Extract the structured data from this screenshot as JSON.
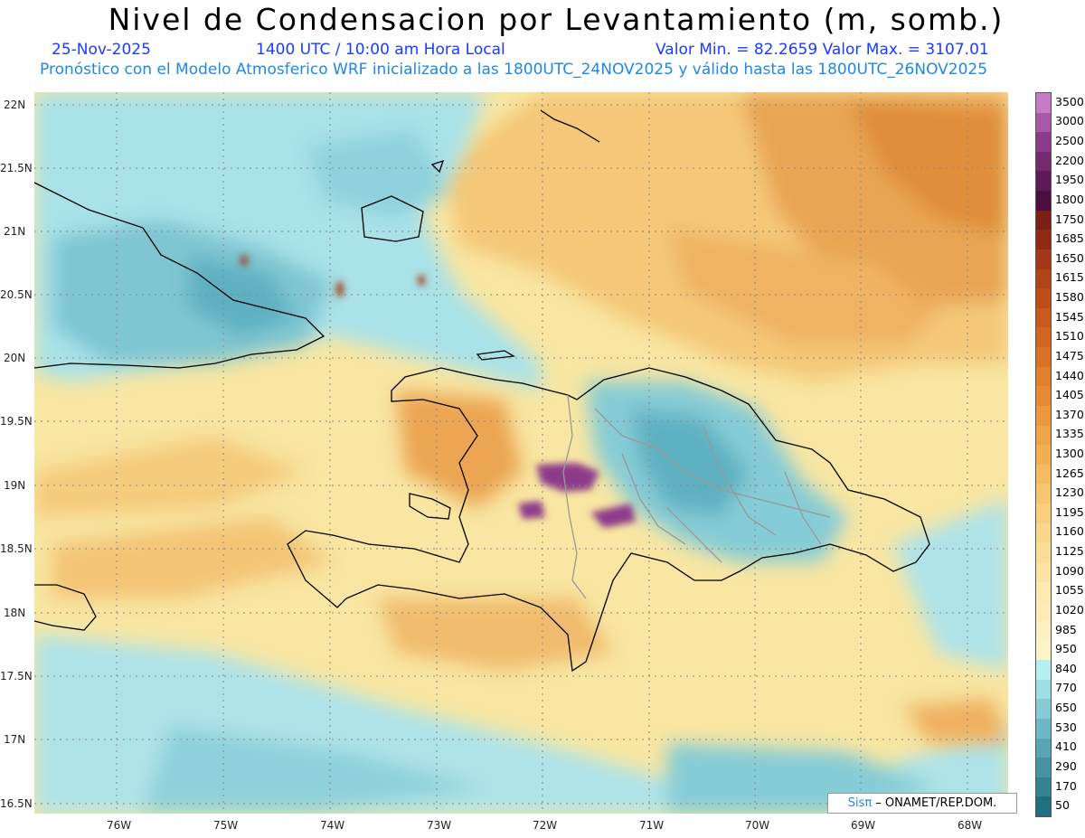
{
  "header": {
    "title": "Nivel de Condensacion por Levantamiento (m, somb.)",
    "date": "25-Nov-2025",
    "time": "1400 UTC / 10:00 am Hora Local",
    "minmax": "Valor Min. = 82.2659  Valor Max. = 3107.01",
    "model_info": "Pronóstico con el Modelo Atmosferico WRF inicializado a las 1800UTC_24NOV2025 y válido hasta las  1800UTC_26NOV2025"
  },
  "axes": {
    "lat_labels": [
      "22N",
      "21.5N",
      "21N",
      "20.5N",
      "20N",
      "19.5N",
      "19N",
      "18.5N",
      "18N",
      "17.5N",
      "17N",
      "16.5N"
    ],
    "lon_labels": [
      "76W",
      "75W",
      "74W",
      "73W",
      "72W",
      "71W",
      "70W",
      "69W",
      "68W"
    ]
  },
  "colorbar": {
    "labels": [
      "3500",
      "3000",
      "2500",
      "2200",
      "1950",
      "1800",
      "1750",
      "1685",
      "1650",
      "1615",
      "1580",
      "1545",
      "1510",
      "1475",
      "1440",
      "1405",
      "1370",
      "1335",
      "1300",
      "1265",
      "1230",
      "1195",
      "1160",
      "1125",
      "1090",
      "1055",
      "1020",
      "985",
      "950",
      "840",
      "770",
      "650",
      "530",
      "410",
      "290",
      "170",
      "50"
    ],
    "colors": [
      "#c77ac6",
      "#a958a8",
      "#8c3a8a",
      "#742a70",
      "#5e1b58",
      "#4a0f3e",
      "#7a1f14",
      "#8f2b12",
      "#a23815",
      "#b04318",
      "#bd4e1a",
      "#c85a1d",
      "#d16621",
      "#d97226",
      "#e07f2d",
      "#e68b35",
      "#eb983f",
      "#ef a449",
      "#f2b055",
      "#f5bb62",
      "#f7c56f",
      "#f9ce7c",
      "#fad68a",
      "#fbdd97",
      "#fce3a3",
      "#fde8ae",
      "#fdecb8",
      "#fdf0c1",
      "#fdf3c9",
      "#b6eef2",
      "#9fdde4",
      "#86cbd5",
      "#6eb8c5",
      "#58a6b5",
      "#4594a5",
      "#338395",
      "#1f6f82"
    ]
  },
  "credit": {
    "brand": "Sisπ",
    "text": " – ONAMET/REP.DOM."
  }
}
